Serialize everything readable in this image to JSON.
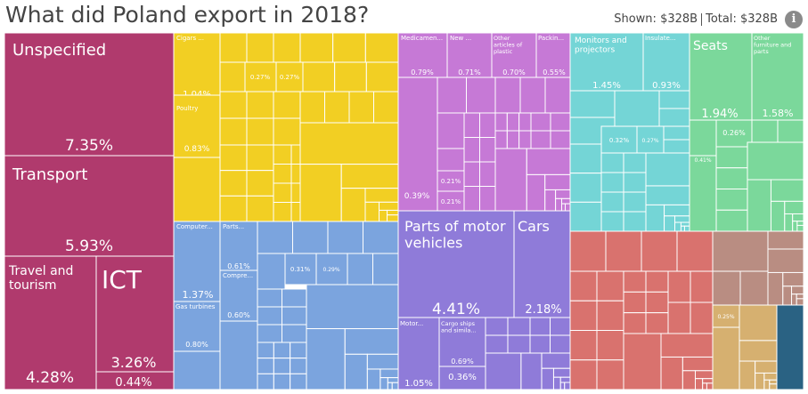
{
  "header": {
    "title": "What did Poland export in 2018?",
    "shown_label": "Shown:",
    "shown_value": "$328B",
    "total_label": "Total:",
    "total_value": "$328B",
    "info_glyph": "i"
  },
  "chart_data": {
    "type": "treemap",
    "title": "What did Poland export in 2018?",
    "shown": "$328B",
    "total": "$328B",
    "colors": {
      "services": "#b03a6d",
      "food": "#f2cf23",
      "electronics": "#7ba4de",
      "chemicals": "#c679d6",
      "vehicles": "#8f7bd9",
      "machinery": "#74d5d6",
      "furniture": "#7bd89b",
      "metals": "#d9726e",
      "minerals": "#b98d82",
      "wood": "#d6b070",
      "dark": "#2a6283"
    },
    "labeled_items": [
      {
        "name": "Unspecified",
        "share": "7.35%",
        "group": "services"
      },
      {
        "name": "Transport",
        "share": "5.93%",
        "group": "services"
      },
      {
        "name": "Travel and tourism",
        "share": "4.28%",
        "group": "services"
      },
      {
        "name": "ICT",
        "share": "3.26%",
        "group": "services"
      },
      {
        "name": "",
        "share": "0.44%",
        "group": "services"
      },
      {
        "name": "Cigars ...",
        "share": "1.04%",
        "group": "food"
      },
      {
        "name": "Poultry",
        "share": "0.83%",
        "group": "food"
      },
      {
        "name": "",
        "share": "0.27%",
        "group": "food"
      },
      {
        "name": "",
        "share": "0.27%",
        "group": "food"
      },
      {
        "name": "Medicamen...",
        "share": "0.79%",
        "group": "chemicals"
      },
      {
        "name": "New ...",
        "share": "0.71%",
        "group": "chemicals"
      },
      {
        "name": "Other articles of plastic",
        "share": "0.70%",
        "group": "chemicals"
      },
      {
        "name": "Packin...",
        "share": "0.55%",
        "group": "chemicals"
      },
      {
        "name": "",
        "share": "0.39%",
        "group": "chemicals"
      },
      {
        "name": "",
        "share": "0.22%",
        "group": "chemicals"
      },
      {
        "name": "",
        "share": "0.21%",
        "group": "chemicals"
      },
      {
        "name": "",
        "share": "0.21%",
        "group": "chemicals"
      },
      {
        "name": "Monitors and projectors",
        "share": "1.45%",
        "group": "machinery"
      },
      {
        "name": "Insulate...",
        "share": "0.93%",
        "group": "machinery"
      },
      {
        "name": "",
        "share": "0.32%",
        "group": "machinery"
      },
      {
        "name": "",
        "share": "0.27%",
        "group": "machinery"
      },
      {
        "name": "Seats",
        "share": "1.94%",
        "group": "furniture"
      },
      {
        "name": "Other furniture and parts",
        "share": "1.58%",
        "group": "furniture"
      },
      {
        "name": "",
        "share": "0.26%",
        "group": "furniture"
      },
      {
        "name": "",
        "share": "0.41%",
        "group": "furniture"
      },
      {
        "name": "Computer...",
        "share": "1.37%",
        "group": "electronics"
      },
      {
        "name": "Parts...",
        "share": "0.61%",
        "group": "electronics"
      },
      {
        "name": "Compre...",
        "share": "0.60%",
        "group": "electronics"
      },
      {
        "name": "Gas turbines",
        "share": "0.80%",
        "group": "electronics"
      },
      {
        "name": "",
        "share": "0.31%",
        "group": "electronics"
      },
      {
        "name": "",
        "share": "0.29%",
        "group": "electronics"
      },
      {
        "name": "Parts of motor vehicles",
        "share": "4.41%",
        "group": "vehicles"
      },
      {
        "name": "Cars",
        "share": "2.18%",
        "group": "vehicles"
      },
      {
        "name": "Motor...",
        "share": "1.05%",
        "group": "vehicles"
      },
      {
        "name": "Cargo ships and simila...",
        "share": "0.69%",
        "group": "vehicles"
      },
      {
        "name": "",
        "share": "0.36%",
        "group": "vehicles"
      },
      {
        "name": "",
        "share": "0.25%",
        "group": "wood"
      }
    ]
  }
}
